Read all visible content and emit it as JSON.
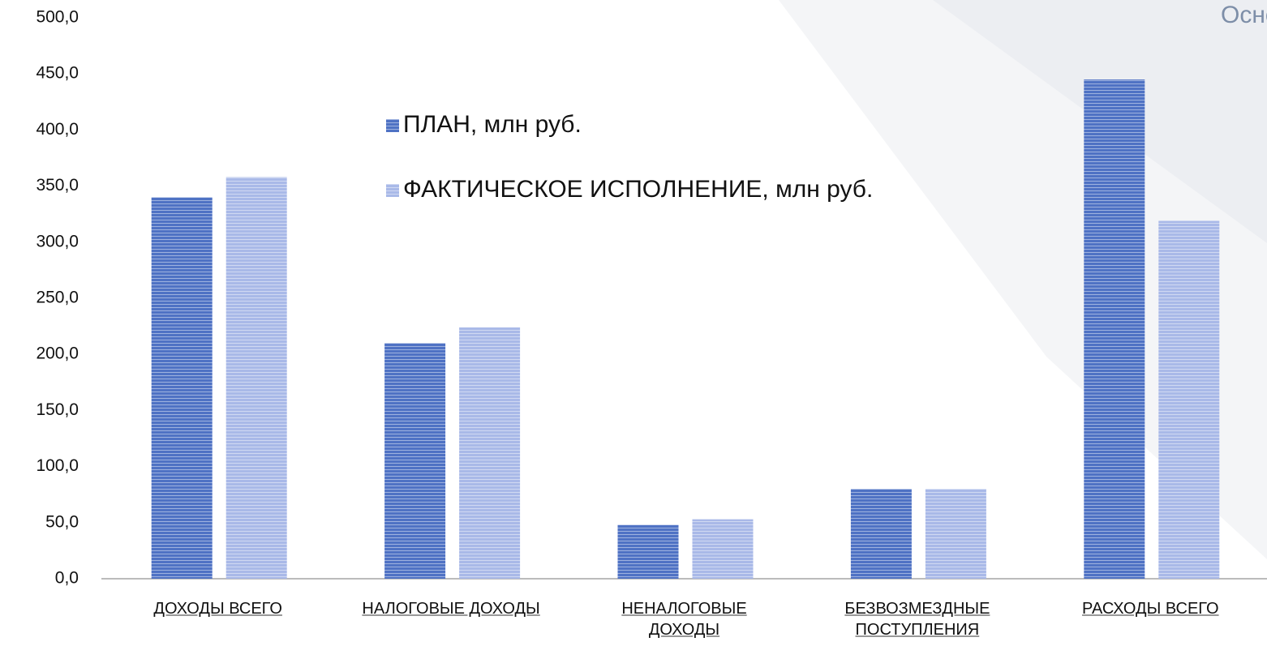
{
  "chart_data": {
    "type": "bar",
    "title": "Основные",
    "categories": [
      "ДОХОДЫ ВСЕГО",
      "НАЛОГОВЫЕ ДОХОДЫ",
      "НЕНАЛОГОВЫЕ ДОХОДЫ",
      "БЕЗВОЗМЕЗДНЫЕ ПОСТУПЛЕНИЯ",
      "РАСХОДЫ ВСЕГО"
    ],
    "series": [
      {
        "name": "ПЛАН, млн руб.",
        "color": "#4f72c4",
        "values": [
          340,
          210,
          48,
          80,
          445
        ]
      },
      {
        "name": "ФАКТИЧЕСКОЕ ИСПОЛНЕНИЕ, млн руб.",
        "color": "#a9b9e8",
        "values": [
          358,
          224,
          53,
          80,
          319
        ]
      }
    ],
    "ylim": [
      0,
      500
    ],
    "yticks": [
      {
        "value": 0,
        "label": "0,0"
      },
      {
        "value": 50,
        "label": "50,0"
      },
      {
        "value": 100,
        "label": "100,0"
      },
      {
        "value": 150,
        "label": "150,0"
      },
      {
        "value": 200,
        "label": "200,0"
      },
      {
        "value": 250,
        "label": "250,0"
      },
      {
        "value": 300,
        "label": "300,0"
      },
      {
        "value": 350,
        "label": "350,0"
      },
      {
        "value": 400,
        "label": "400,0"
      },
      {
        "value": 450,
        "label": "450,0"
      },
      {
        "value": 500,
        "label": "500,0"
      }
    ],
    "grid": false
  }
}
